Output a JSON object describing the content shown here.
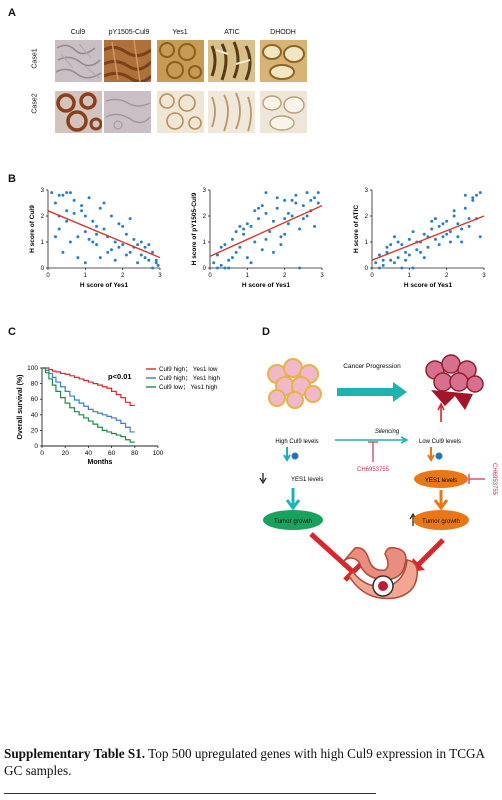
{
  "panels": {
    "a": "A",
    "b": "B",
    "c": "C",
    "d": "D"
  },
  "panel_a": {
    "columns": [
      "Cul9",
      "pY1505-Cul9",
      "Yes1",
      "ATIC",
      "DHODH"
    ],
    "rows": [
      "Case1",
      "Case2"
    ]
  },
  "caption": {
    "bold": "Supplementary Table S1.",
    "text": " Top 500 upregulated genes with high Cul9 expression in TCGA GC samples."
  },
  "colors": {
    "scatter_point": "#2b7fc0",
    "fit_line": "#d43a2f",
    "teal": "#1fb3b0",
    "orange": "#e87817",
    "green": "#1aa15d",
    "red": "#d9262c"
  },
  "chart_data": [
    {
      "type": "scatter",
      "xlabel": "H score of Yes1",
      "ylabel": "H score of Cul9",
      "xlim": [
        0,
        3
      ],
      "ylim": [
        0,
        3
      ],
      "xticks": [
        "0",
        "1",
        "2",
        "3"
      ],
      "yticks": [
        "0",
        "1",
        "2",
        "3"
      ],
      "fit_line": [
        [
          0,
          2.2
        ],
        [
          3,
          0.4
        ]
      ],
      "x": [
        0.1,
        0.2,
        0.3,
        0.3,
        0.4,
        0.5,
        0.5,
        0.6,
        0.7,
        0.8,
        0.9,
        1.0,
        1.0,
        1.1,
        1.2,
        1.3,
        1.3,
        1.4,
        1.5,
        1.6,
        1.7,
        1.8,
        1.9,
        2.0,
        2.1,
        2.2,
        2.3,
        2.4,
        2.5,
        2.6,
        2.7,
        2.8,
        2.9,
        2.95,
        0.2,
        0.4,
        0.6,
        0.8,
        1.0,
        1.2,
        1.4,
        1.6,
        1.8,
        2.0,
        2.2,
        2.4,
        2.6,
        2.8,
        0.3,
        0.7,
        1.1,
        1.5,
        1.9,
        2.3,
        2.7,
        0.5,
        0.9,
        1.3,
        1.7,
        2.1,
        2.5,
        2.9
      ],
      "y": [
        2.9,
        2.5,
        2.0,
        1.5,
        2.8,
        2.2,
        1.8,
        2.9,
        2.6,
        1.2,
        2.4,
        2.0,
        1.4,
        2.7,
        1.8,
        1.6,
        0.9,
        2.3,
        1.5,
        1.2,
        2.0,
        1.0,
        0.8,
        1.6,
        1.3,
        0.6,
        1.1,
        0.9,
        0.5,
        0.8,
        0.3,
        0.6,
        0.2,
        0.1,
        1.2,
        0.6,
        1.0,
        0.4,
        0.2,
        1.0,
        0.4,
        0.6,
        0.3,
        0.9,
        1.9,
        0.2,
        0.4,
        0.0,
        2.8,
        2.1,
        1.1,
        2.5,
        1.7,
        0.8,
        0.9,
        2.9,
        2.2,
        1.3,
        0.7,
        0.5,
        1.0,
        0.3
      ]
    },
    {
      "type": "scatter",
      "xlabel": "H score of Yes1",
      "ylabel": "H score of pY1505-Cul9",
      "xlim": [
        0,
        3
      ],
      "ylim": [
        0,
        3
      ],
      "xticks": [
        "0",
        "1",
        "2",
        "3"
      ],
      "yticks": [
        "0",
        "1",
        "2",
        "3"
      ],
      "fit_line": [
        [
          0,
          0.45
        ],
        [
          3,
          2.4
        ]
      ],
      "x": [
        0.1,
        0.2,
        0.3,
        0.4,
        0.5,
        0.6,
        0.7,
        0.8,
        0.9,
        1.0,
        1.1,
        1.2,
        1.3,
        1.4,
        1.5,
        1.6,
        1.7,
        1.8,
        1.9,
        2.0,
        2.1,
        2.2,
        2.3,
        2.4,
        2.5,
        2.6,
        2.7,
        2.8,
        2.9,
        0.2,
        0.5,
        0.8,
        1.1,
        1.4,
        1.7,
        2.0,
        2.3,
        2.6,
        2.9,
        0.3,
        0.6,
        0.9,
        1.2,
        1.5,
        1.8,
        2.1,
        2.4,
        2.7,
        1.0,
        1.5,
        2.0,
        2.5,
        0.4,
        0.7,
        1.3,
        1.9,
        2.2,
        2.8
      ],
      "y": [
        0.2,
        0.5,
        0.1,
        0.9,
        0.3,
        1.1,
        0.6,
        0.8,
        1.3,
        0.4,
        1.6,
        1.0,
        1.9,
        0.7,
        2.1,
        1.4,
        1.8,
        2.3,
        1.2,
        2.6,
        1.7,
        2.0,
        2.8,
        1.5,
        2.4,
        2.9,
        2.2,
        2.7,
        2.5,
        0.0,
        0.0,
        1.6,
        0.2,
        2.4,
        0.6,
        1.9,
        2.5,
        2.0,
        2.9,
        0.8,
        0.4,
        1.5,
        2.2,
        1.1,
        2.7,
        2.1,
        0.0,
        2.6,
        1.7,
        2.9,
        1.3,
        1.9,
        0.0,
        1.4,
        2.3,
        0.9,
        2.6,
        1.6
      ]
    },
    {
      "type": "scatter",
      "xlabel": "H score of Yes1",
      "ylabel": "H score of ATIC",
      "xlim": [
        0,
        3
      ],
      "ylim": [
        0,
        3
      ],
      "xticks": [
        "0",
        "1",
        "2",
        "3"
      ],
      "yticks": [
        "0",
        "1",
        "2",
        "3"
      ],
      "fit_line": [
        [
          0,
          0.3
        ],
        [
          3,
          2.0
        ]
      ],
      "x": [
        0.1,
        0.2,
        0.3,
        0.4,
        0.5,
        0.6,
        0.7,
        0.8,
        0.9,
        1.0,
        1.1,
        1.2,
        1.3,
        1.4,
        1.5,
        1.6,
        1.7,
        1.8,
        1.9,
        2.0,
        2.1,
        2.2,
        2.3,
        2.4,
        2.5,
        2.6,
        2.7,
        2.8,
        2.9,
        0.2,
        0.4,
        0.6,
        0.8,
        1.0,
        1.2,
        1.4,
        1.6,
        1.8,
        2.0,
        2.2,
        2.4,
        2.6,
        2.8,
        0.3,
        0.7,
        1.1,
        1.5,
        1.9,
        2.3,
        2.7,
        0.5,
        0.9,
        1.3,
        1.7,
        2.1,
        2.5,
        2.9
      ],
      "y": [
        0.2,
        0.5,
        0.1,
        0.8,
        0.3,
        1.2,
        0.4,
        0.9,
        0.6,
        1.1,
        1.4,
        0.7,
        1.0,
        1.3,
        0.8,
        1.5,
        1.1,
        1.6,
        1.2,
        1.8,
        1.4,
        2.0,
        1.7,
        1.5,
        2.3,
        1.9,
        2.6,
        2.8,
        2.9,
        0.0,
        0.6,
        0.2,
        0.0,
        0.5,
        1.0,
        0.4,
        1.8,
        0.9,
        1.3,
        2.2,
        1.0,
        1.6,
        1.9,
        0.3,
        1.0,
        0.0,
        1.2,
        1.7,
        1.2,
        2.7,
        0.9,
        0.3,
        0.6,
        1.9,
        1.0,
        2.8,
        1.2
      ]
    },
    {
      "type": "line",
      "title": "",
      "xlabel": "Months",
      "ylabel": "Overall survival (%)",
      "xlim": [
        0,
        100
      ],
      "ylim": [
        0,
        100
      ],
      "xticks": [
        "0",
        "20",
        "40",
        "60",
        "80",
        "100"
      ],
      "yticks": [
        "0",
        "20",
        "40",
        "60",
        "80",
        "100"
      ],
      "annotation": "p<0.01",
      "legend_position": "top-right",
      "series": [
        {
          "name": "Cul9 high； Yes1 low",
          "color": "#d9262c",
          "x": [
            0,
            3,
            6,
            9,
            12,
            16,
            20,
            24,
            28,
            32,
            36,
            40,
            44,
            48,
            52,
            56,
            60,
            64,
            68,
            72,
            76,
            80
          ],
          "y": [
            100,
            100,
            98,
            96,
            95,
            93,
            92,
            90,
            88,
            86,
            84,
            82,
            80,
            78,
            76,
            74,
            70,
            66,
            62,
            56,
            52,
            52
          ]
        },
        {
          "name": "Cul9 high； Yes1 high",
          "color": "#3b7fc4",
          "x": [
            0,
            3,
            6,
            9,
            12,
            16,
            20,
            24,
            28,
            32,
            36,
            40,
            44,
            48,
            52,
            56,
            60,
            64,
            68,
            72,
            76,
            80
          ],
          "y": [
            100,
            97,
            93,
            88,
            82,
            76,
            70,
            64,
            59,
            55,
            51,
            47,
            44,
            42,
            40,
            38,
            36,
            33,
            29,
            24,
            18,
            18
          ]
        },
        {
          "name": "Cul9 low； Yes1 high",
          "color": "#1f8a4c",
          "x": [
            0,
            3,
            6,
            9,
            12,
            16,
            20,
            24,
            28,
            32,
            36,
            40,
            44,
            48,
            52,
            56,
            60,
            64,
            68,
            72,
            76,
            80
          ],
          "y": [
            100,
            94,
            86,
            78,
            70,
            62,
            55,
            49,
            44,
            40,
            36,
            32,
            28,
            24,
            20,
            18,
            16,
            14,
            12,
            8,
            5,
            5
          ]
        }
      ]
    }
  ],
  "diagram": {
    "progression": "Cancer Progression",
    "high_cul9": "High Cul9 levels",
    "silencing": "Silencing",
    "low_cul9": "Low Cul9 levels",
    "inhibitor": "CH6953755",
    "inhibitor_vertical": "CH6953755",
    "yes1_left": "YES1 levels",
    "yes1_right": "YES1 levels",
    "tumor_left": "Tumor growth",
    "tumor_right": "Tumor growth"
  }
}
